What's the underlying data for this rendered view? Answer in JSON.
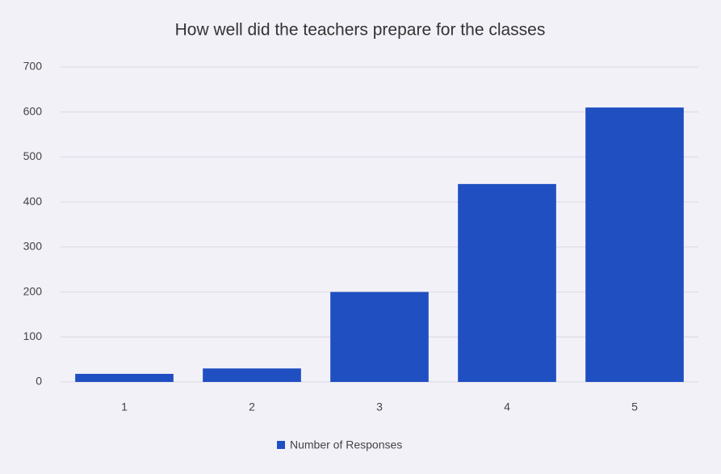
{
  "chart_data": {
    "type": "bar",
    "title": "How well did the teachers prepare for the classes",
    "categories": [
      "1",
      "2",
      "3",
      "4",
      "5"
    ],
    "series": [
      {
        "name": "Number of Responses",
        "color": "#1f4fc1",
        "values": [
          18,
          30,
          200,
          440,
          610
        ]
      }
    ],
    "ylim": [
      0,
      700
    ],
    "yticks": [
      0,
      100,
      200,
      300,
      400,
      500,
      600,
      700
    ],
    "grid": true,
    "legend": "bottom"
  }
}
